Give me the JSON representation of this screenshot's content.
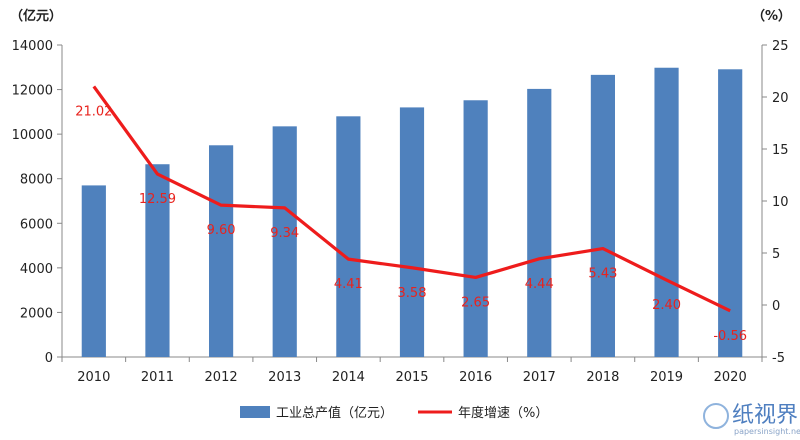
{
  "chart_data": {
    "type": "bar",
    "categories": [
      "2010",
      "2011",
      "2012",
      "2013",
      "2014",
      "2015",
      "2016",
      "2017",
      "2018",
      "2019",
      "2020"
    ],
    "series": [
      {
        "name": "工业总产值（亿元）",
        "type": "bar",
        "axis": "left",
        "color": "#4f81bd",
        "values": [
          7700,
          8650,
          9500,
          10350,
          10800,
          11200,
          11520,
          12030,
          12660,
          12980,
          12910
        ]
      },
      {
        "name": "年度增速（%）",
        "type": "line",
        "axis": "right",
        "color": "#ee1c1c",
        "values": [
          21.02,
          12.59,
          9.6,
          9.34,
          4.41,
          3.58,
          2.65,
          4.44,
          5.43,
          2.4,
          -0.56
        ],
        "labels": [
          "21.02",
          "12.59",
          "9.60",
          "9.34",
          "4.41",
          "3.58",
          "2.65",
          "4.44",
          "5.43",
          "2.40",
          "-0.56"
        ]
      }
    ],
    "left_axis": {
      "unit": "（亿元）",
      "ylim": [
        0,
        14000
      ],
      "ticks": [
        "0",
        "2000",
        "4000",
        "6000",
        "8000",
        "10000",
        "12000",
        "14000"
      ]
    },
    "right_axis": {
      "unit": "（%）",
      "ylim": [
        -5,
        25
      ],
      "ticks": [
        "-5",
        "0",
        "5",
        "10",
        "15",
        "20",
        "25"
      ]
    },
    "grid": false,
    "legend_position": "bottom"
  },
  "watermark": {
    "text": "纸视界",
    "subtext": "papersinsight.net"
  }
}
